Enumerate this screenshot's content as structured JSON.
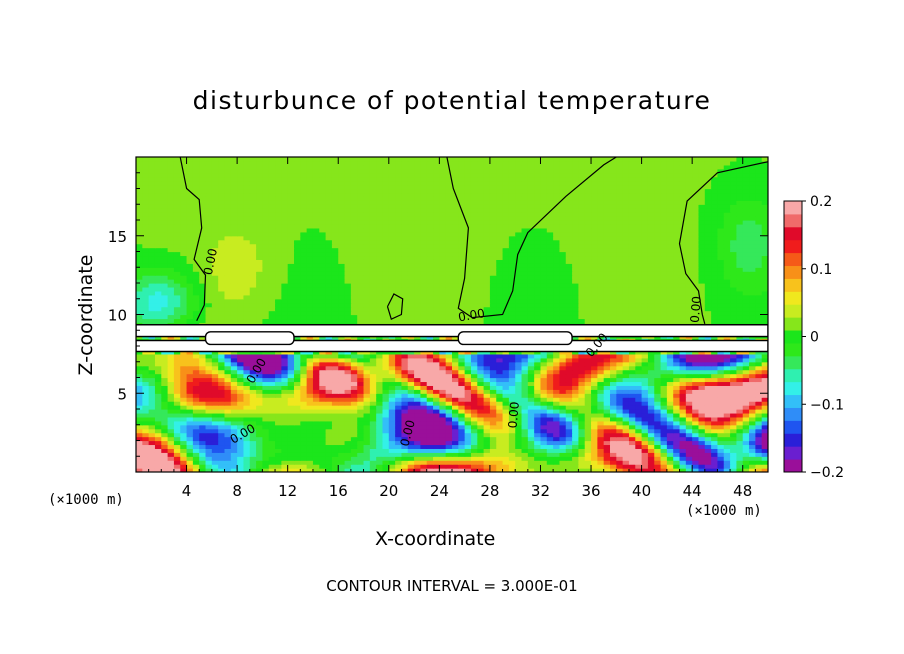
{
  "chart_data": {
    "type": "heatmap",
    "title": "disturbunce of potential temperature",
    "xlabel": "X-coordinate",
    "ylabel": "Z-coordinate",
    "x_unit_left": "(×1000 m)",
    "x_unit_right": "(×1000 m)",
    "xlim": [
      0,
      50
    ],
    "ylim": [
      0,
      20
    ],
    "x_ticks": [
      4,
      8,
      12,
      16,
      20,
      24,
      28,
      32,
      36,
      40,
      44,
      48
    ],
    "x_tick_labels": [
      "4",
      "8",
      "12",
      "16",
      "20",
      "24",
      "28",
      "32",
      "36",
      "40",
      "44",
      "48"
    ],
    "y_ticks": [
      5,
      10,
      15
    ],
    "y_tick_labels": [
      "5",
      "10",
      "15"
    ],
    "colorbar": {
      "min": -0.2,
      "max": 0.2,
      "ticks": [
        0.2,
        0.1,
        0,
        -0.1,
        -0.2
      ],
      "tick_labels": [
        "0.2",
        "0.1",
        "0",
        "−0.1",
        "−0.2"
      ],
      "colors": [
        "#9a0f9a",
        "#6a1fd0",
        "#2a1fd8",
        "#1f55f0",
        "#2f8df8",
        "#33bff8",
        "#33f0e8",
        "#2ff0b0",
        "#35e85a",
        "#2ee81a",
        "#1be61b",
        "#86e61b",
        "#c8ec20",
        "#f0e81e",
        "#f8c21c",
        "#f89018",
        "#f55a18",
        "#f01c1c",
        "#e00a2a",
        "#f06a6a",
        "#f8a8a8"
      ]
    },
    "contour_labels": [
      "0.00",
      "0.00",
      "0.00",
      "0.00",
      "0.00",
      "0.00",
      "0.00",
      "0.00"
    ],
    "annotation": "CONTOUR INTERVAL = 3.000E-01"
  }
}
